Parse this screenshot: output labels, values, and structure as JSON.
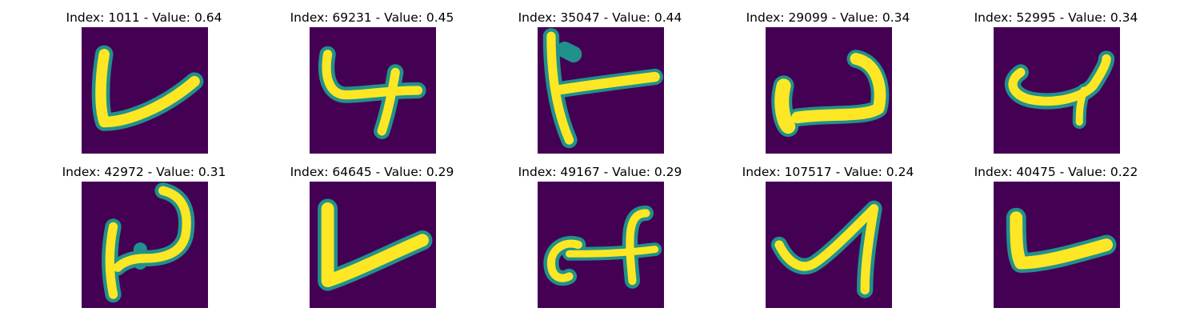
{
  "figure": {
    "colormap": "viridis",
    "background_color": "#440154",
    "stroke_color": "#fde725",
    "panels": [
      {
        "index_label": "Index: 1011",
        "value_label": "Value: 0.64",
        "title": "Index: 1011 - Value: 0.64"
      },
      {
        "index_label": "Index: 69231",
        "value_label": "Value: 0.45",
        "title": "Index: 69231 - Value: 0.45"
      },
      {
        "index_label": "Index: 35047",
        "value_label": "Value: 0.44",
        "title": "Index: 35047 - Value: 0.44"
      },
      {
        "index_label": "Index: 29099",
        "value_label": "Value: 0.34",
        "title": "Index: 29099 - Value: 0.34"
      },
      {
        "index_label": "Index: 52995",
        "value_label": "Value: 0.34",
        "title": "Index: 52995 - Value: 0.34"
      },
      {
        "index_label": "Index: 42972",
        "value_label": "Value: 0.31",
        "title": "Index: 42972 - Value: 0.31"
      },
      {
        "index_label": "Index: 64645",
        "value_label": "Value: 0.29",
        "title": "Index: 64645 - Value: 0.29"
      },
      {
        "index_label": "Index: 49167",
        "value_label": "Value: 0.29",
        "title": "Index: 49167 - Value: 0.29"
      },
      {
        "index_label": "Index: 107517",
        "value_label": "Value: 0.24",
        "title": "Index: 107517 - Value: 0.24"
      },
      {
        "index_label": "Index: 40475",
        "value_label": "Value: 0.22",
        "title": "Index: 40475 - Value: 0.22"
      }
    ]
  }
}
